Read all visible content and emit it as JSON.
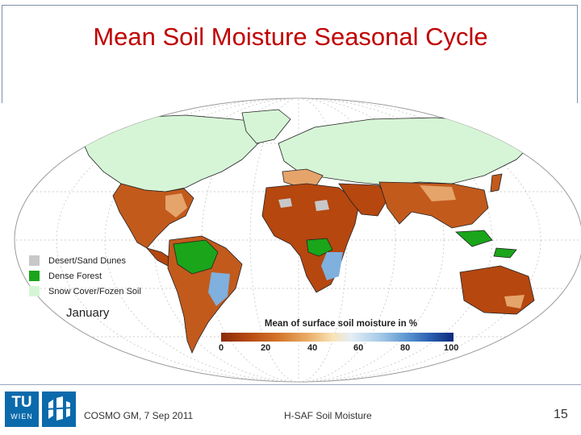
{
  "slide": {
    "title": "Mean Soil Moisture Seasonal Cycle",
    "footer_left": "COSMO GM, 7 Sep 2011",
    "footer_center": "H-SAF Soil Moisture",
    "page_number": "15"
  },
  "map": {
    "month": "January",
    "legend": [
      {
        "label": "Desert/Sand Dunes",
        "color": "#c8c8c8"
      },
      {
        "label": "Dense Forest",
        "color": "#1aa51a"
      },
      {
        "label": "Snow Cover/Fozen Soil",
        "color": "#d6f5d6"
      }
    ],
    "colorbar_title": "Mean of surface soil moisture in %",
    "colorbar_ticks": [
      "0",
      "20",
      "40",
      "60",
      "80",
      "100"
    ],
    "colors": {
      "dry": "#b5470f",
      "mid": "#e28a3c",
      "wet": "#5b95d0",
      "snow": "#d6f5d6",
      "forest": "#1aa51a",
      "desert": "#c8c8c8"
    }
  },
  "logos": {
    "tu_main": "TU",
    "tu_sub": "WIEN"
  }
}
